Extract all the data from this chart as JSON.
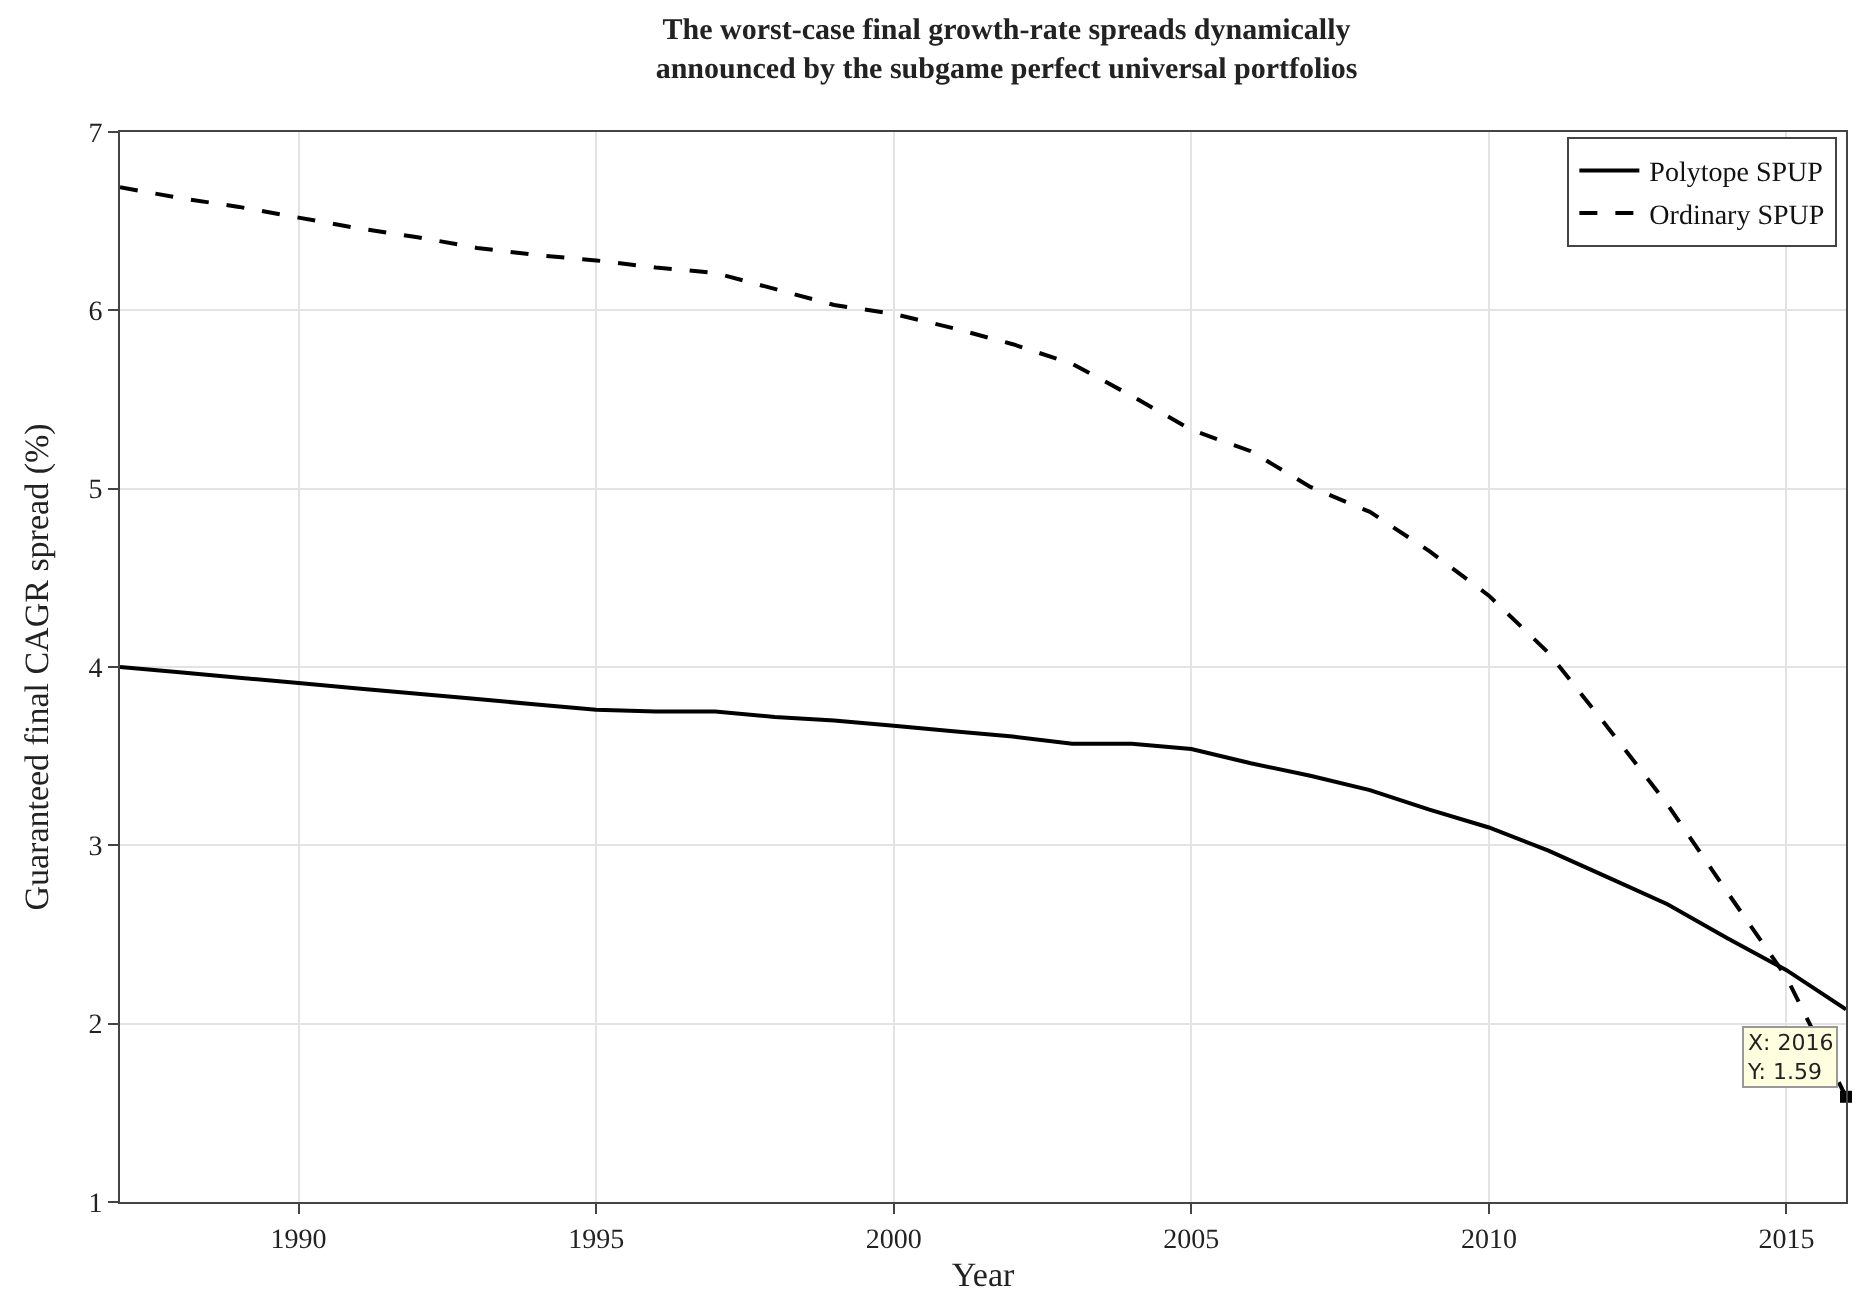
{
  "chart_data": {
    "type": "line",
    "title": "The worst-case final growth-rate spreads dynamically\nannounced by the subgame perfect universal portfolios",
    "xlabel": "Year",
    "ylabel": "Guaranteed final CAGR spread (%)",
    "x": [
      1987,
      1988,
      1989,
      1990,
      1991,
      1992,
      1993,
      1994,
      1995,
      1996,
      1997,
      1998,
      1999,
      2000,
      2001,
      2002,
      2003,
      2004,
      2005,
      2006,
      2007,
      2008,
      2009,
      2010,
      2011,
      2012,
      2013,
      2014,
      2015,
      2016
    ],
    "series": [
      {
        "name": "Polytope SPUP",
        "color": "#000000",
        "line_style": "solid",
        "values": [
          4.0,
          3.97,
          3.94,
          3.91,
          3.88,
          3.85,
          3.82,
          3.79,
          3.76,
          3.75,
          3.75,
          3.72,
          3.7,
          3.67,
          3.64,
          3.61,
          3.57,
          3.57,
          3.54,
          3.46,
          3.39,
          3.31,
          3.2,
          3.1,
          2.97,
          2.82,
          2.67,
          2.48,
          2.3,
          2.08
        ]
      },
      {
        "name": "Ordinary SPUP",
        "color": "#000000",
        "line_style": "dashed",
        "values": [
          6.69,
          6.63,
          6.58,
          6.52,
          6.46,
          6.41,
          6.35,
          6.31,
          6.28,
          6.24,
          6.21,
          6.12,
          6.03,
          5.98,
          5.9,
          5.81,
          5.7,
          5.52,
          5.33,
          5.21,
          5.01,
          4.87,
          4.65,
          4.4,
          4.08,
          3.66,
          3.23,
          2.74,
          2.26,
          1.59
        ]
      }
    ],
    "annotations": [
      {
        "text": "X: 2016\nY: 1.59",
        "x": 2016,
        "y": 1.59
      }
    ],
    "xlim": [
      1987,
      2016
    ],
    "xticks": [
      1990,
      1995,
      2000,
      2005,
      2010,
      2015
    ],
    "ylim": [
      1,
      7
    ],
    "yticks": [
      1,
      2,
      3,
      4,
      5,
      6,
      7
    ],
    "grid": true,
    "legend": "top right",
    "marker": "none"
  }
}
